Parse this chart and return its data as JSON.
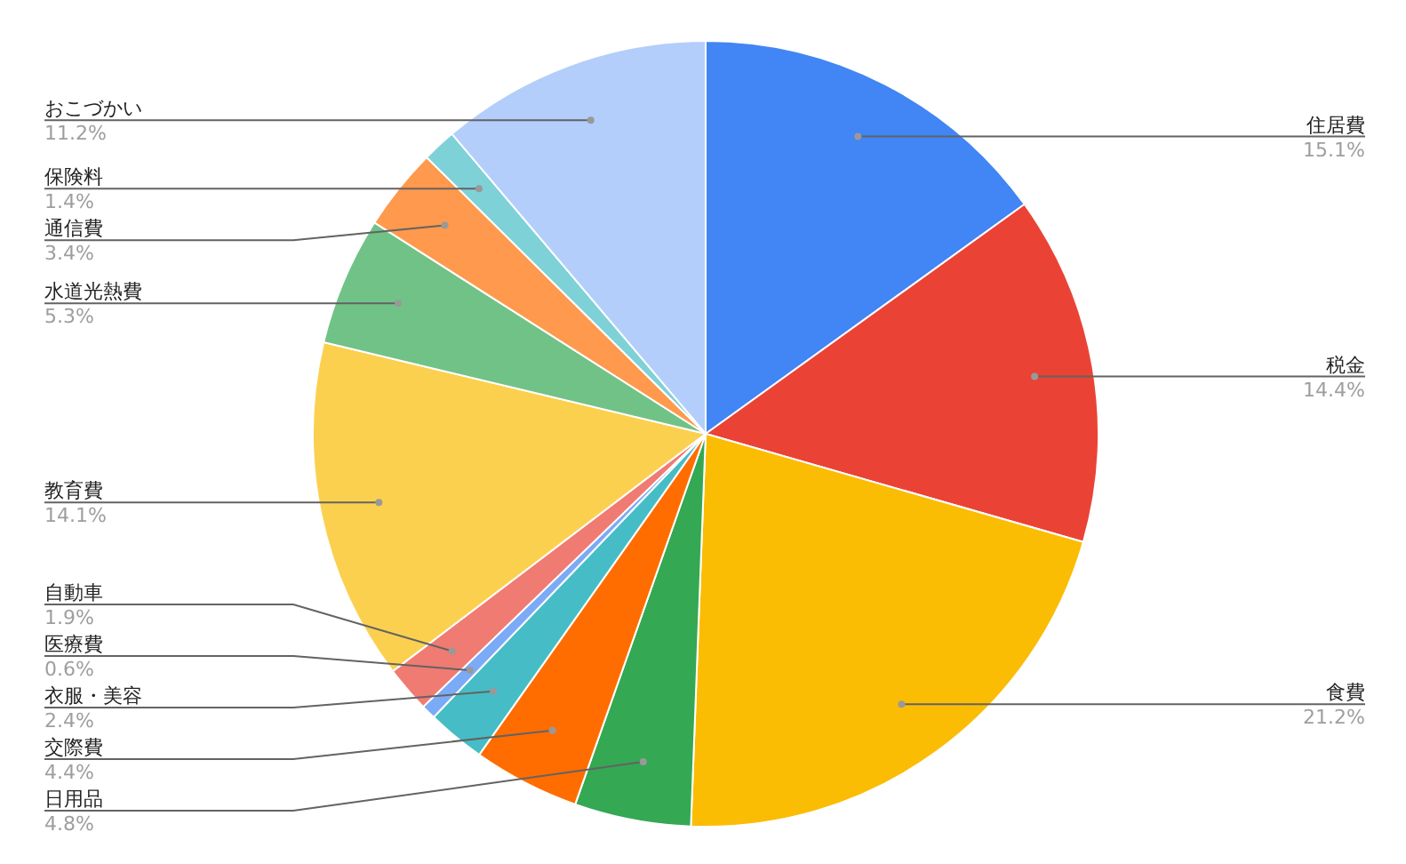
{
  "chart_data": {
    "type": "pie",
    "categories": [
      "住居費",
      "税金",
      "食費",
      "日用品",
      "交際費",
      "衣服・美容",
      "医療費",
      "自動車",
      "教育費",
      "水道光熱費",
      "通信費",
      "保険料",
      "おこづかい"
    ],
    "values": [
      15.1,
      14.4,
      21.2,
      4.8,
      4.4,
      2.4,
      0.6,
      1.9,
      14.1,
      5.3,
      3.4,
      1.4,
      11.2
    ],
    "colors": [
      "#4285f4",
      "#ea4335",
      "#fbbc04",
      "#34a853",
      "#ff6d01",
      "#46bdc6",
      "#7baaf7",
      "#f07b72",
      "#fcd04f",
      "#71c287",
      "#ff994d",
      "#7ed1d7",
      "#b3cefb"
    ],
    "value_labels": [
      "15.1%",
      "14.4%",
      "21.2%",
      "4.8%",
      "4.4%",
      "2.4%",
      "0.6%",
      "1.9%",
      "14.1%",
      "5.3%",
      "3.4%",
      "1.4%",
      "11.2%"
    ],
    "legend": false
  }
}
